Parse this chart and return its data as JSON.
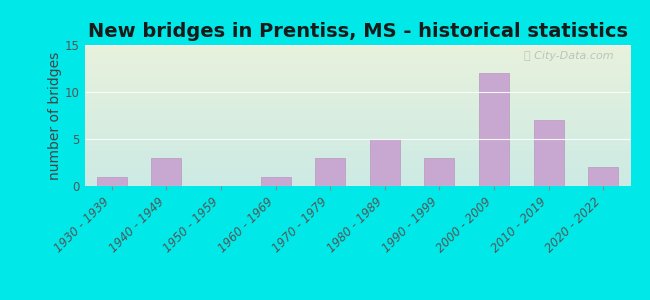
{
  "title": "New bridges in Prentiss, MS - historical statistics",
  "ylabel": "number of bridges",
  "categories": [
    "1930 - 1939",
    "1940 - 1949",
    "1950 - 1959",
    "1960 - 1969",
    "1970 - 1979",
    "1980 - 1989",
    "1990 - 1999",
    "2000 - 2009",
    "2010 - 2019",
    "2020 - 2022"
  ],
  "values": [
    1,
    3,
    0,
    1,
    3,
    5,
    3,
    12,
    7,
    2
  ],
  "bar_color": "#c8a8d0",
  "bar_edge_color": "#b898c0",
  "background_outer": "#00e8e8",
  "background_inner_top": "#e8f2dc",
  "background_inner_bottom": "#cceae4",
  "ylim": [
    0,
    15
  ],
  "yticks": [
    0,
    5,
    10,
    15
  ],
  "title_fontsize": 14,
  "axis_label_fontsize": 10,
  "tick_fontsize": 8.5,
  "watermark": "City-Data.com"
}
